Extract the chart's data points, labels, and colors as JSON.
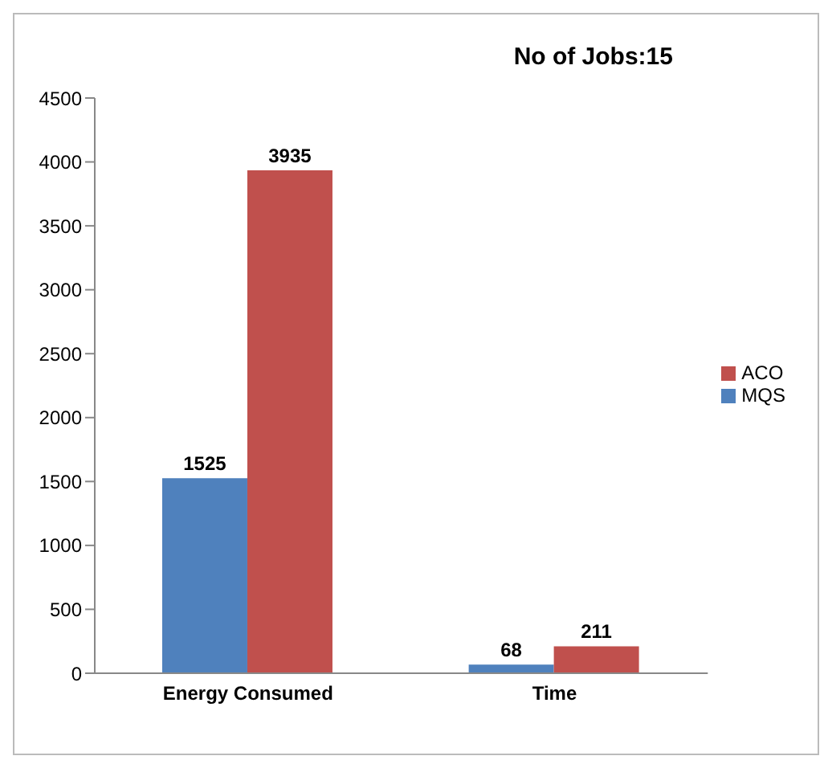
{
  "chart_data": {
    "type": "bar",
    "annotations": [
      "No of Jobs:15"
    ],
    "categories": [
      "Energy Consumed",
      "Time"
    ],
    "series": [
      {
        "name": "MQS",
        "color": "#4f81bd",
        "values": [
          1525,
          68
        ]
      },
      {
        "name": "ACO",
        "color": "#c0504d",
        "values": [
          3935,
          211
        ]
      }
    ],
    "ylim": [
      0,
      4500
    ],
    "yticks": [
      0,
      500,
      1000,
      1500,
      2000,
      2500,
      3000,
      3500,
      4000,
      4500
    ],
    "grid": false,
    "legend": "right",
    "data_labels": true
  }
}
